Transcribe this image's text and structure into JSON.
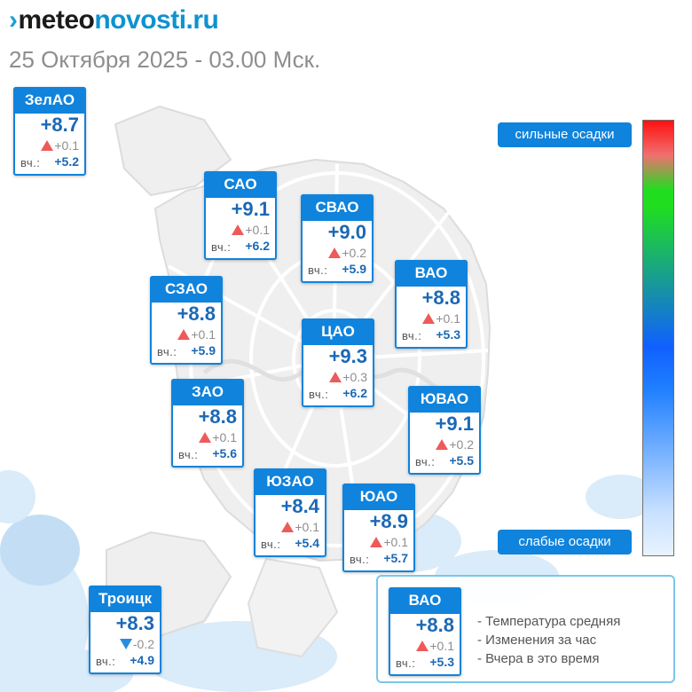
{
  "header": {
    "logo_part1": "meteo",
    "logo_part2": "novosti.ru",
    "subtitle": "25 Октября 2025 - 03.00 Мск."
  },
  "districts": [
    {
      "id": "zelao",
      "name": "ЗелАО",
      "temp": "+8.7",
      "trend": "up",
      "delta": "+0.1",
      "yesterday_label": "вч.:",
      "yesterday": "+5.2"
    },
    {
      "id": "sao",
      "name": "САО",
      "temp": "+9.1",
      "trend": "up",
      "delta": "+0.1",
      "yesterday_label": "вч.:",
      "yesterday": "+6.2"
    },
    {
      "id": "svao",
      "name": "СВАО",
      "temp": "+9.0",
      "trend": "up",
      "delta": "+0.2",
      "yesterday_label": "вч.:",
      "yesterday": "+5.9"
    },
    {
      "id": "vao",
      "name": "ВАО",
      "temp": "+8.8",
      "trend": "up",
      "delta": "+0.1",
      "yesterday_label": "вч.:",
      "yesterday": "+5.3"
    },
    {
      "id": "szao",
      "name": "СЗАО",
      "temp": "+8.8",
      "trend": "up",
      "delta": "+0.1",
      "yesterday_label": "вч.:",
      "yesterday": "+5.9"
    },
    {
      "id": "cao",
      "name": "ЦАО",
      "temp": "+9.3",
      "trend": "up",
      "delta": "+0.3",
      "yesterday_label": "вч.:",
      "yesterday": "+6.2"
    },
    {
      "id": "zao",
      "name": "ЗАО",
      "temp": "+8.8",
      "trend": "up",
      "delta": "+0.1",
      "yesterday_label": "вч.:",
      "yesterday": "+5.6"
    },
    {
      "id": "yuvao",
      "name": "ЮВАО",
      "temp": "+9.1",
      "trend": "up",
      "delta": "+0.2",
      "yesterday_label": "вч.:",
      "yesterday": "+5.5"
    },
    {
      "id": "yuzao",
      "name": "ЮЗАО",
      "temp": "+8.4",
      "trend": "up",
      "delta": "+0.1",
      "yesterday_label": "вч.:",
      "yesterday": "+5.4"
    },
    {
      "id": "yuao",
      "name": "ЮАО",
      "temp": "+8.9",
      "trend": "up",
      "delta": "+0.1",
      "yesterday_label": "вч.:",
      "yesterday": "+5.7"
    },
    {
      "id": "troitsk",
      "name": "Троицк",
      "temp": "+8.3",
      "trend": "down",
      "delta": "-0.2",
      "yesterday_label": "вч.:",
      "yesterday": "+4.9"
    }
  ],
  "scale": {
    "top_label": "сильные осадки",
    "bottom_label": "слабые осадки"
  },
  "legend": {
    "sample": {
      "name": "ВАО",
      "temp": "+8.8",
      "trend": "up",
      "delta": "+0.1",
      "yesterday_label": "вч.:",
      "yesterday": "+5.3"
    },
    "line_temp": "- Температура средняя",
    "line_change": "- Изменения за час",
    "line_yesterday": "- Вчера в это время"
  },
  "colors": {
    "card_blue": "#1083dc",
    "temp_blue": "#1b68b6",
    "trend_up": "#ee5a5a",
    "trend_down": "#2a8ce0"
  }
}
